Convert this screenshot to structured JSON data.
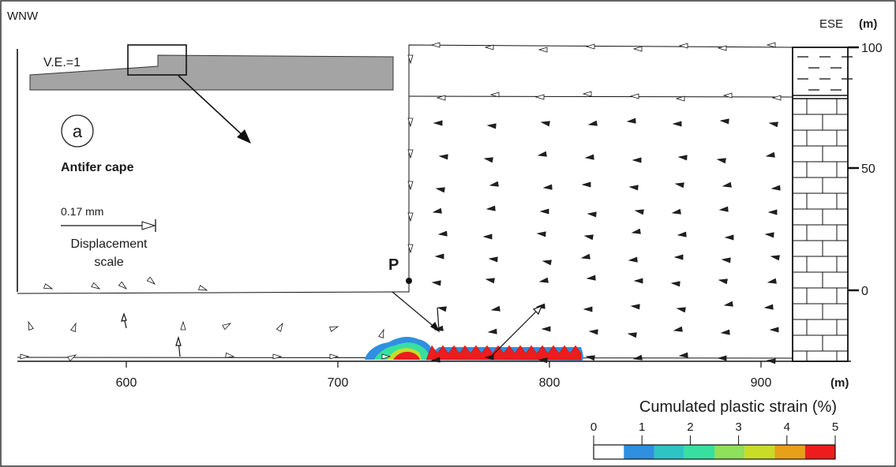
{
  "orientation": {
    "left": "WNW",
    "right": "ESE"
  },
  "vertical_exaggeration": "V.E.=1",
  "panel_label": "a",
  "site_name": "Antifer cape",
  "displacement_scale": {
    "value": "0.17 mm",
    "label_line1": "Displacement",
    "label_line2": "scale"
  },
  "point_label": "P",
  "x_axis": {
    "unit": "(m)",
    "ticks": [
      600,
      700,
      800,
      900
    ]
  },
  "y_axis": {
    "unit": "(m)",
    "ticks": [
      100,
      50,
      0
    ]
  },
  "colorbar": {
    "title": "Cumulated plastic strain (%)",
    "ticks": [
      0,
      1,
      2,
      3,
      4,
      5
    ],
    "colors": [
      "#ffffff",
      "#2f8fe0",
      "#2ec4c4",
      "#38e0a0",
      "#8fe05a",
      "#c8dc28",
      "#e8a018",
      "#ee1c1c"
    ]
  }
}
